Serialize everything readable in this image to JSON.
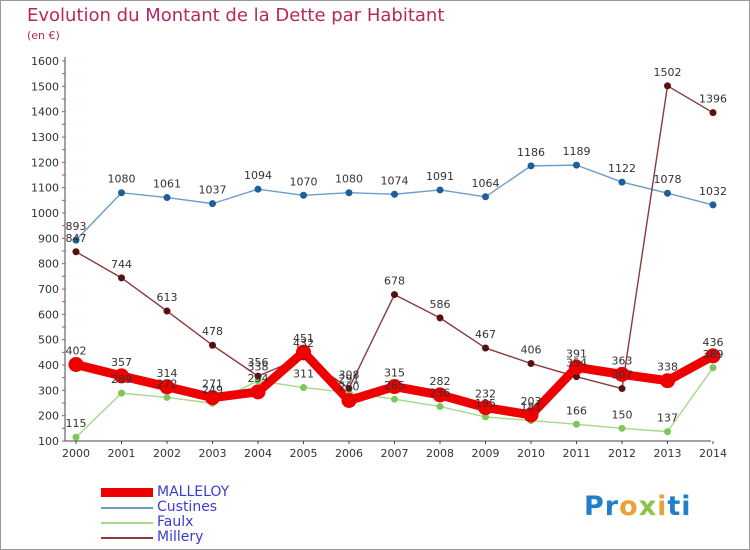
{
  "title": "Evolution du Montant de la Dette par Habitant",
  "subtitle": "(en €)",
  "logo": {
    "text": "Proxiti",
    "colors": [
      "#1f7fc8",
      "#1f7fc8",
      "#e8a23a",
      "#8bc34a",
      "#e8a23a",
      "#1f7fc8",
      "#1f7fc8"
    ]
  },
  "chart_data": {
    "type": "line",
    "title": "Evolution du Montant de la Dette par Habitant",
    "subtitle": "(en €)",
    "x": [
      "2000",
      "2001",
      "2002",
      "2003",
      "2004",
      "2005",
      "2006",
      "2007",
      "2008",
      "2009",
      "2010",
      "2011",
      "2012",
      "2013",
      "2014"
    ],
    "y_ticks": [
      "100",
      "200",
      "300",
      "400",
      "500",
      "600",
      "700",
      "800",
      "900",
      "1000",
      "1100",
      "1200",
      "1300",
      "1400",
      "1500",
      "1600"
    ],
    "ylim": [
      100,
      1600
    ],
    "grid": false,
    "legend_position": "bottom-left",
    "series": [
      {
        "name": "MALLELOY",
        "color": "#ee0000",
        "marker": "#ee0000",
        "values": [
          402,
          357,
          314,
          271,
          294,
          451,
          260,
          315,
          282,
          232,
          203,
          391,
          363,
          338,
          436
        ],
        "labels": [
          "402",
          "357",
          "314",
          "271",
          "294",
          "451",
          "260",
          "315",
          "282",
          "232",
          "203",
          "391",
          "363",
          "338",
          "436"
        ]
      },
      {
        "name": "Custines",
        "color": "#6a9ecb",
        "marker": "#1f5f99",
        "values": [
          893,
          1080,
          1061,
          1037,
          1094,
          1070,
          1080,
          1074,
          1091,
          1064,
          1186,
          1189,
          1122,
          1078,
          1032
        ],
        "labels": [
          "893",
          "1080",
          "1061",
          "1037",
          "1094",
          "1070",
          "1080",
          "1074",
          "1091",
          "1064",
          "1186",
          "1189",
          "1122",
          "1078",
          "1032"
        ]
      },
      {
        "name": "Faulx",
        "color": "#a6d98a",
        "marker": "#7fc65a",
        "values": [
          115,
          289,
          272,
          249,
          338,
          311,
          291,
          265,
          236,
          195,
          181,
          166,
          150,
          137,
          389
        ],
        "labels": [
          "115",
          "289",
          "272",
          "249",
          "338",
          "311",
          "291",
          "265",
          "236",
          "195",
          "181",
          "166",
          "150",
          "137",
          "389"
        ]
      },
      {
        "name": "Millery",
        "color": "#8a3a3a",
        "marker": "#5a1010",
        "values": [
          847,
          744,
          613,
          478,
          356,
          432,
          308,
          678,
          586,
          467,
          406,
          354,
          307,
          1502,
          1396
        ],
        "labels": [
          "847",
          "744",
          "613",
          "478",
          "356",
          "432",
          "308",
          "678",
          "586",
          "467",
          "406",
          "354",
          "307",
          "1502",
          "1396"
        ]
      }
    ]
  }
}
